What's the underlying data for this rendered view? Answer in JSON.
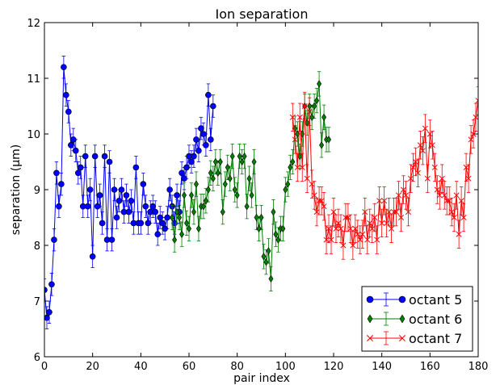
{
  "chart_data": {
    "type": "line",
    "title": "Ion separation",
    "xlabel": "pair index",
    "ylabel": "separation (μm)",
    "xlim": [
      0,
      180
    ],
    "ylim": [
      6,
      12
    ],
    "xticks": [
      0,
      20,
      40,
      60,
      80,
      100,
      120,
      140,
      160,
      180
    ],
    "yticks": [
      6,
      7,
      8,
      9,
      10,
      11,
      12
    ],
    "grid": false,
    "legend_position": "bottom-right",
    "series": [
      {
        "name": "octant 5",
        "color": "#0000ff",
        "marker": "circle",
        "start": 0,
        "yerr": 0.2,
        "values": [
          7.2,
          6.7,
          6.8,
          7.3,
          8.1,
          9.3,
          8.7,
          9.1,
          11.2,
          10.7,
          10.4,
          9.8,
          9.9,
          9.7,
          9.3,
          9.4,
          8.7,
          9.6,
          8.7,
          9.0,
          7.8,
          9.6,
          8.7,
          8.9,
          8.4,
          9.6,
          8.1,
          9.5,
          8.1,
          9.0,
          8.5,
          8.8,
          9.0,
          8.6,
          8.9,
          8.6,
          8.8,
          8.4,
          9.4,
          8.4,
          8.4,
          9.1,
          8.7,
          8.4,
          8.6,
          8.7,
          8.6,
          8.2,
          8.5,
          8.4,
          8.3,
          8.5,
          9.0,
          8.7,
          8.4,
          8.9,
          8.6,
          9.3,
          9.2,
          9.4,
          9.6,
          9.5,
          9.6,
          9.9,
          9.7,
          10.1,
          10.0,
          9.8,
          10.7,
          9.9,
          10.5
        ]
      },
      {
        "name": "octant 6",
        "color": "#007f00",
        "marker": "diamond",
        "start": 53,
        "yerr": 0.22,
        "values": [
          8.5,
          8.1,
          8.6,
          8.5,
          8.2,
          8.9,
          8.4,
          8.3,
          8.9,
          8.6,
          9.1,
          8.3,
          8.7,
          8.7,
          8.8,
          9.0,
          9.3,
          9.2,
          9.5,
          9.3,
          9.5,
          8.6,
          9.1,
          9.4,
          9.2,
          9.6,
          9.0,
          8.9,
          9.6,
          9.5,
          9.6,
          8.7,
          9.2,
          8.9,
          9.5,
          8.5,
          8.3,
          8.5,
          7.8,
          7.7,
          7.9,
          7.4,
          8.6,
          8.2,
          8.1,
          8.3,
          8.3,
          9.0,
          9.1,
          9.4,
          9.5,
          10.1,
          10.0,
          9.6,
          10.0,
          10.5,
          10.2,
          10.5,
          10.3,
          10.5,
          10.6,
          10.9,
          9.8,
          10.3,
          9.9,
          9.9
        ]
      },
      {
        "name": "octant 7",
        "color": "#ff0000",
        "marker": "x",
        "start": 103,
        "yerr": 0.25,
        "values": [
          10.3,
          9.9,
          9.4,
          10.3,
          9.4,
          10.5,
          9.2,
          10.4,
          9.1,
          8.9,
          8.6,
          8.8,
          8.8,
          8.7,
          8.1,
          8.3,
          8.1,
          8.6,
          8.3,
          8.4,
          8.3,
          8.0,
          8.5,
          8.5,
          8.3,
          8.0,
          8.3,
          8.2,
          8.1,
          8.2,
          8.6,
          8.1,
          8.4,
          8.3,
          8.5,
          8.1,
          8.8,
          8.4,
          8.8,
          8.4,
          8.6,
          8.3,
          8.6,
          8.6,
          8.9,
          8.5,
          9.0,
          8.9,
          8.6,
          9.2,
          9.4,
          9.5,
          9.3,
          9.8,
          9.7,
          10.1,
          9.2,
          10.0,
          9.8,
          9.4,
          9.0,
          8.9,
          9.2,
          8.9,
          8.8,
          8.8,
          8.6,
          8.5,
          8.9,
          8.2,
          8.8,
          8.5,
          9.4,
          9.2,
          9.9,
          10.0,
          10.3,
          10.6
        ]
      }
    ]
  }
}
